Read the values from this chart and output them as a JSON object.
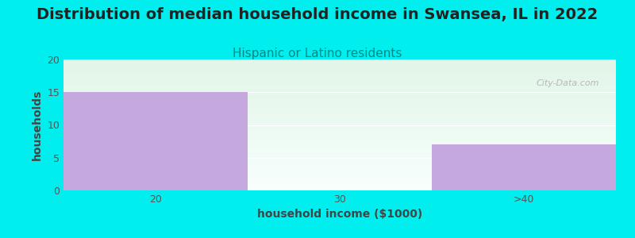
{
  "title": "Distribution of median household income in Swansea, IL in 2022",
  "subtitle": "Hispanic or Latino residents",
  "categories": [
    "20",
    "30",
    ">40"
  ],
  "values": [
    15,
    0,
    7
  ],
  "bar_color": "#c4a8de",
  "background_color": "#00eeee",
  "plot_bg_top": "#e2f5e8",
  "plot_bg_bottom": "#f8fffe",
  "xlabel": "household income ($1000)",
  "ylabel": "households",
  "ylim": [
    0,
    20
  ],
  "yticks": [
    0,
    5,
    10,
    15,
    20
  ],
  "title_fontsize": 14,
  "title_color": "#222222",
  "subtitle_fontsize": 11,
  "subtitle_color": "#008888",
  "axis_label_fontsize": 10,
  "tick_fontsize": 9,
  "tick_color": "#555555",
  "watermark": "City-Data.com"
}
